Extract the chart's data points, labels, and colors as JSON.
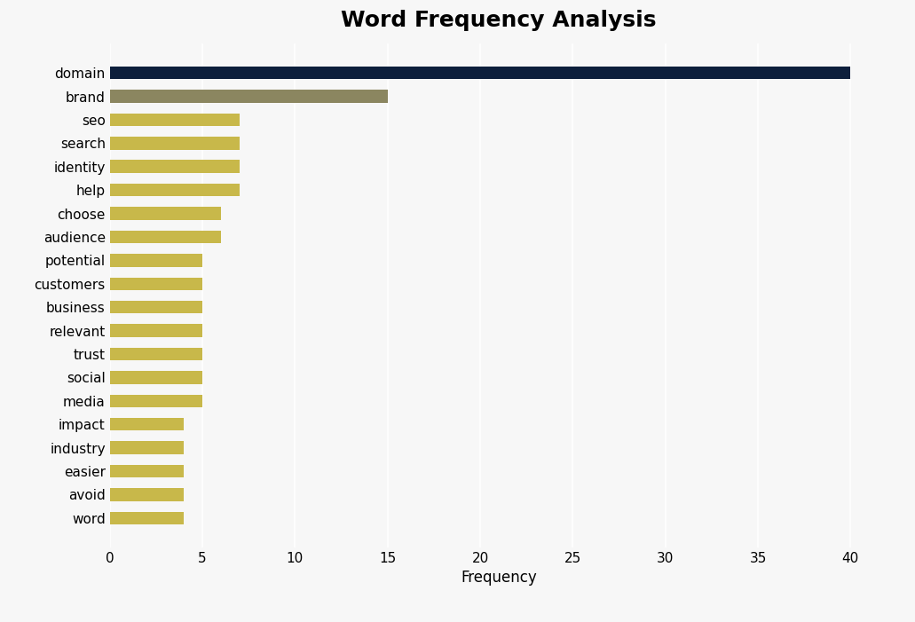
{
  "title": "Word Frequency Analysis",
  "xlabel": "Frequency",
  "categories": [
    "domain",
    "brand",
    "seo",
    "search",
    "identity",
    "help",
    "choose",
    "audience",
    "potential",
    "customers",
    "business",
    "relevant",
    "trust",
    "social",
    "media",
    "impact",
    "industry",
    "easier",
    "avoid",
    "word"
  ],
  "values": [
    40,
    15,
    7,
    7,
    7,
    7,
    6,
    6,
    5,
    5,
    5,
    5,
    5,
    5,
    5,
    4,
    4,
    4,
    4,
    4
  ],
  "bar_colors": [
    "#0d1f3c",
    "#8b8660",
    "#c8b84a",
    "#c8b84a",
    "#c8b84a",
    "#c8b84a",
    "#c8b84a",
    "#c8b84a",
    "#c8b84a",
    "#c8b84a",
    "#c8b84a",
    "#c8b84a",
    "#c8b84a",
    "#c8b84a",
    "#c8b84a",
    "#c8b84a",
    "#c8b84a",
    "#c8b84a",
    "#c8b84a",
    "#c8b84a"
  ],
  "background_color": "#f7f7f7",
  "plot_bg_color": "#f7f7f7",
  "xlim": [
    0,
    42
  ],
  "xticks": [
    0,
    5,
    10,
    15,
    20,
    25,
    30,
    35,
    40
  ],
  "title_fontsize": 18,
  "title_fontweight": "bold",
  "bar_height": 0.55
}
